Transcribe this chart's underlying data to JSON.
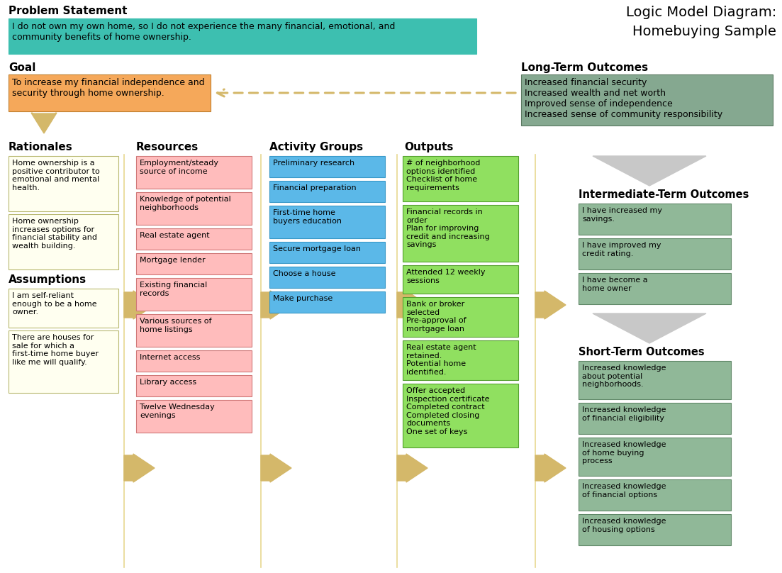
{
  "title": "Logic Model Diagram:\nHomebuying Sample",
  "bg_color": "#FFFFFF",
  "problem_statement": {
    "label": "Problem Statement",
    "text": "I do not own my own home, so I do not experience the many financial, emotional, and\ncommunity benefits of home ownership.",
    "bg": "#3DBFB0",
    "border": "#3DBFB0"
  },
  "goal": {
    "label": "Goal",
    "text": "To increase my financial independence and\nsecurity through home ownership.",
    "bg": "#F5A85A",
    "border": "#C08030"
  },
  "long_term": {
    "label": "Long-Term Outcomes",
    "text": "Increased financial security\nIncreased wealth and net worth\nImproved sense of independence\nIncreased sense of community responsibility",
    "bg": "#85A890",
    "border": "#5A7860"
  },
  "rationales": {
    "label": "Rationales",
    "items": [
      "Home ownership is a\npositive contributor to\nemotional and mental\nhealth.",
      "Home ownership\nincreases options for\nfinancial stability and\nwealth building."
    ],
    "bg": "#FFFFF0",
    "border": "#B8B870"
  },
  "assumptions": {
    "label": "Assumptions",
    "items": [
      "I am self-reliant\nenough to be a home\nowner.",
      "There are houses for\nsale for which a\nfirst-time home buyer\nlike me will qualify."
    ],
    "bg": "#FFFFF0",
    "border": "#B8B870"
  },
  "resources": {
    "label": "Resources",
    "items": [
      "Employment/steady\nsource of income",
      "Knowledge of potential\nneighborhoods",
      "Real estate agent",
      "Mortgage lender",
      "Existing financial\nrecords",
      "Various sources of\nhome listings",
      "Internet access",
      "Library access",
      "Twelve Wednesday\nevenings"
    ],
    "bg": "#FFBCBC",
    "border": "#D07878"
  },
  "activity_groups": {
    "label": "Activity Groups",
    "items": [
      "Preliminary research",
      "Financial preparation",
      "First-time home\nbuyers education",
      "Secure mortgage loan",
      "Choose a house",
      "Make purchase"
    ],
    "bg": "#5BB8E8",
    "border": "#3898C8"
  },
  "outputs": {
    "label": "Outputs",
    "items": [
      "# of neighborhood\noptions identified\nChecklist of home\nrequirements",
      "Financial records in\norder\nPlan for improving\ncredit and increasing\nsavings",
      "Attended 12 weekly\nsessions",
      "Bank or broker\nselected\nPre-approval of\nmortgage loan",
      "Real estate agent\nretained.\nPotential home\nidentified.",
      "Offer accepted\nInspection certificate\nCompleted contract\nCompleted closing\ndocuments\nOne set of keys"
    ],
    "bg": "#90E060",
    "border": "#55A030"
  },
  "intermediate_outcomes": {
    "label": "Intermediate-Term Outcomes",
    "items": [
      "I have increased my\nsavings.",
      "I have improved my\ncredit rating.",
      "I have become a\nhome owner"
    ],
    "bg": "#90B898",
    "border": "#608868"
  },
  "short_term": {
    "label": "Short-Term Outcomes",
    "items": [
      "Increased knowledge\nabout potential\nneighborhoods.",
      "Increased knowledge\nof financial eligibility",
      "Increased knowledge\nof home buying\nprocess",
      "Increased knowledge\nof financial options",
      "Increased knowledge\nof housing options"
    ],
    "bg": "#90B898",
    "border": "#608868"
  },
  "arrow_color": "#D4B86A",
  "line_color": "#E8D890"
}
